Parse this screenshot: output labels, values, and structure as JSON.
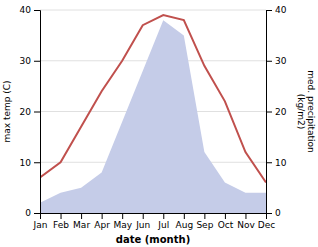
{
  "chart_data": {
    "type": "line",
    "x_label": "date (month)",
    "y_label": "max temp (C)",
    "y2_label": "med. precipitation\n(kg/m2)",
    "categories": [
      "Jan",
      "Feb",
      "Mar",
      "Apr",
      "May",
      "Jun",
      "Jul",
      "Aug",
      "Sep",
      "Oct",
      "Nov",
      "Dec"
    ],
    "series": [
      {
        "type": "area",
        "axis": "y2",
        "color": "#c5cce8",
        "values": [
          2,
          4,
          5,
          8,
          18,
          28,
          38,
          35,
          12,
          6,
          4,
          4
        ]
      },
      {
        "type": "line",
        "color": "#c0504d",
        "values": [
          7,
          10,
          17,
          24,
          30,
          37,
          39,
          38,
          29,
          22,
          12,
          6
        ]
      }
    ],
    "ylim": [
      0,
      40
    ],
    "yticks": [
      0,
      10,
      20,
      30,
      40
    ],
    "y2lim": [
      0,
      40
    ],
    "y2ticks": [
      0,
      10,
      20,
      30,
      40
    ],
    "grid": true
  }
}
